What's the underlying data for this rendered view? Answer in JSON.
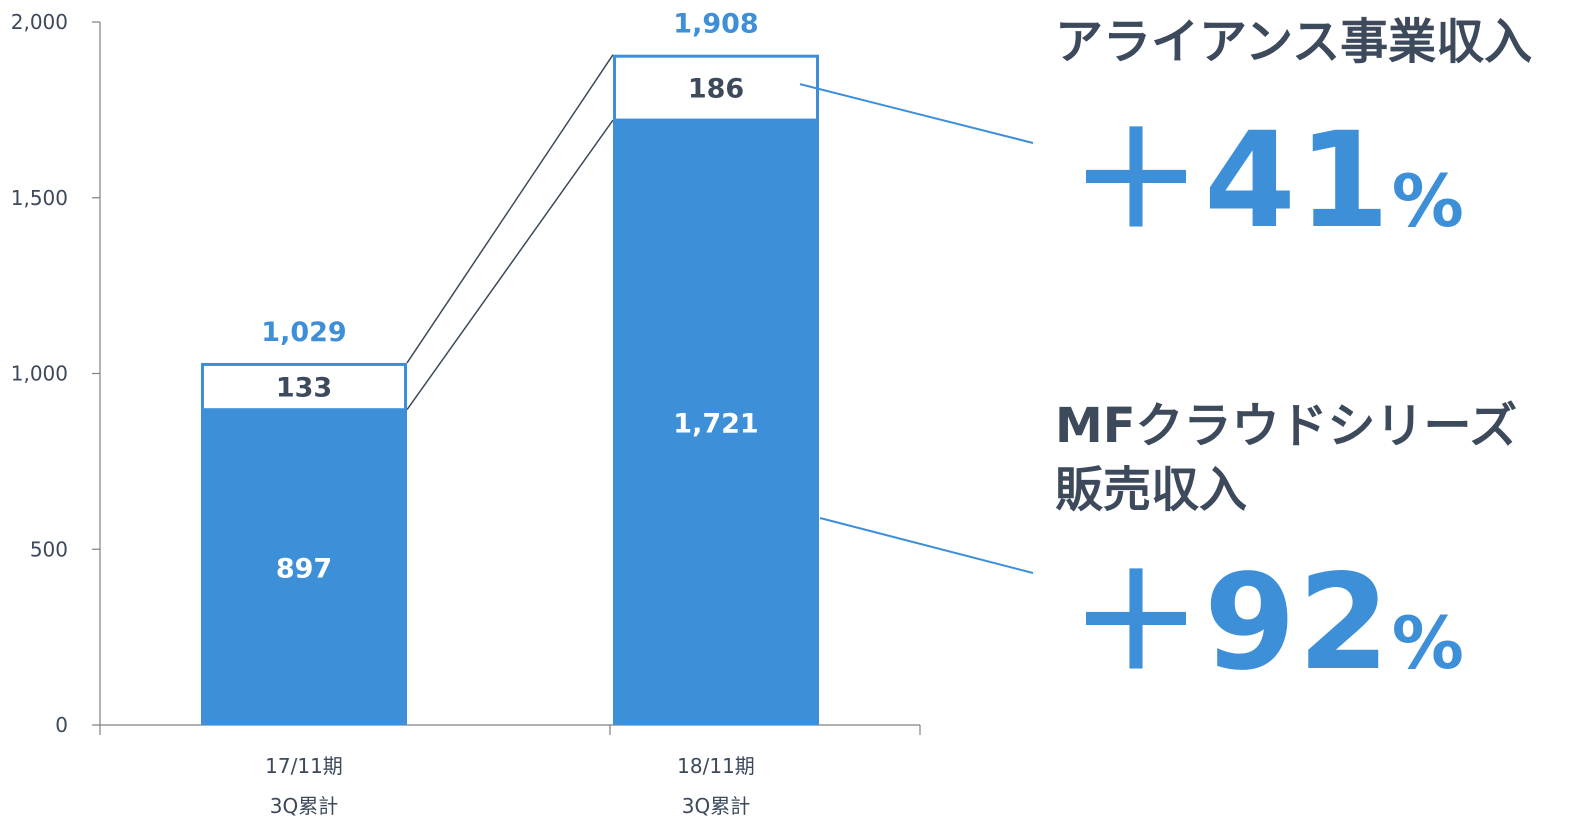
{
  "chart_data": {
    "type": "bar",
    "stacked": true,
    "categories": [
      [
        "17/11期",
        "3Q累計"
      ],
      [
        "18/11期",
        "3Q累計"
      ]
    ],
    "series": [
      {
        "name": "MFクラウドシリーズ販売収入",
        "values": [
          897,
          1721
        ]
      },
      {
        "name": "アライアンス事業収入",
        "values": [
          133,
          186
        ]
      }
    ],
    "totals": [
      "1,029",
      "1,908"
    ],
    "segment_labels": [
      [
        "897",
        "1,721"
      ],
      [
        "133",
        "186"
      ]
    ],
    "y_ticks": [
      0,
      500,
      1000,
      1500,
      2000
    ],
    "y_tick_labels": [
      "0",
      "500",
      "1,000",
      "1,500",
      "2,000"
    ],
    "ylim": [
      0,
      2000
    ],
    "grid": false,
    "colors": {
      "primary": "#3d8fd8",
      "outline": "#3d8fd8",
      "text_dark": "#3d4a5c",
      "axis": "#808080"
    }
  },
  "callouts": {
    "alliance": {
      "title": "アライアンス事業収入",
      "growth_number": "＋41",
      "growth_symbol": "%"
    },
    "cloud": {
      "title_line1": "MFクラウドシリーズ",
      "title_line2": "販売収入",
      "growth_number": "＋92",
      "growth_symbol": "%"
    }
  }
}
